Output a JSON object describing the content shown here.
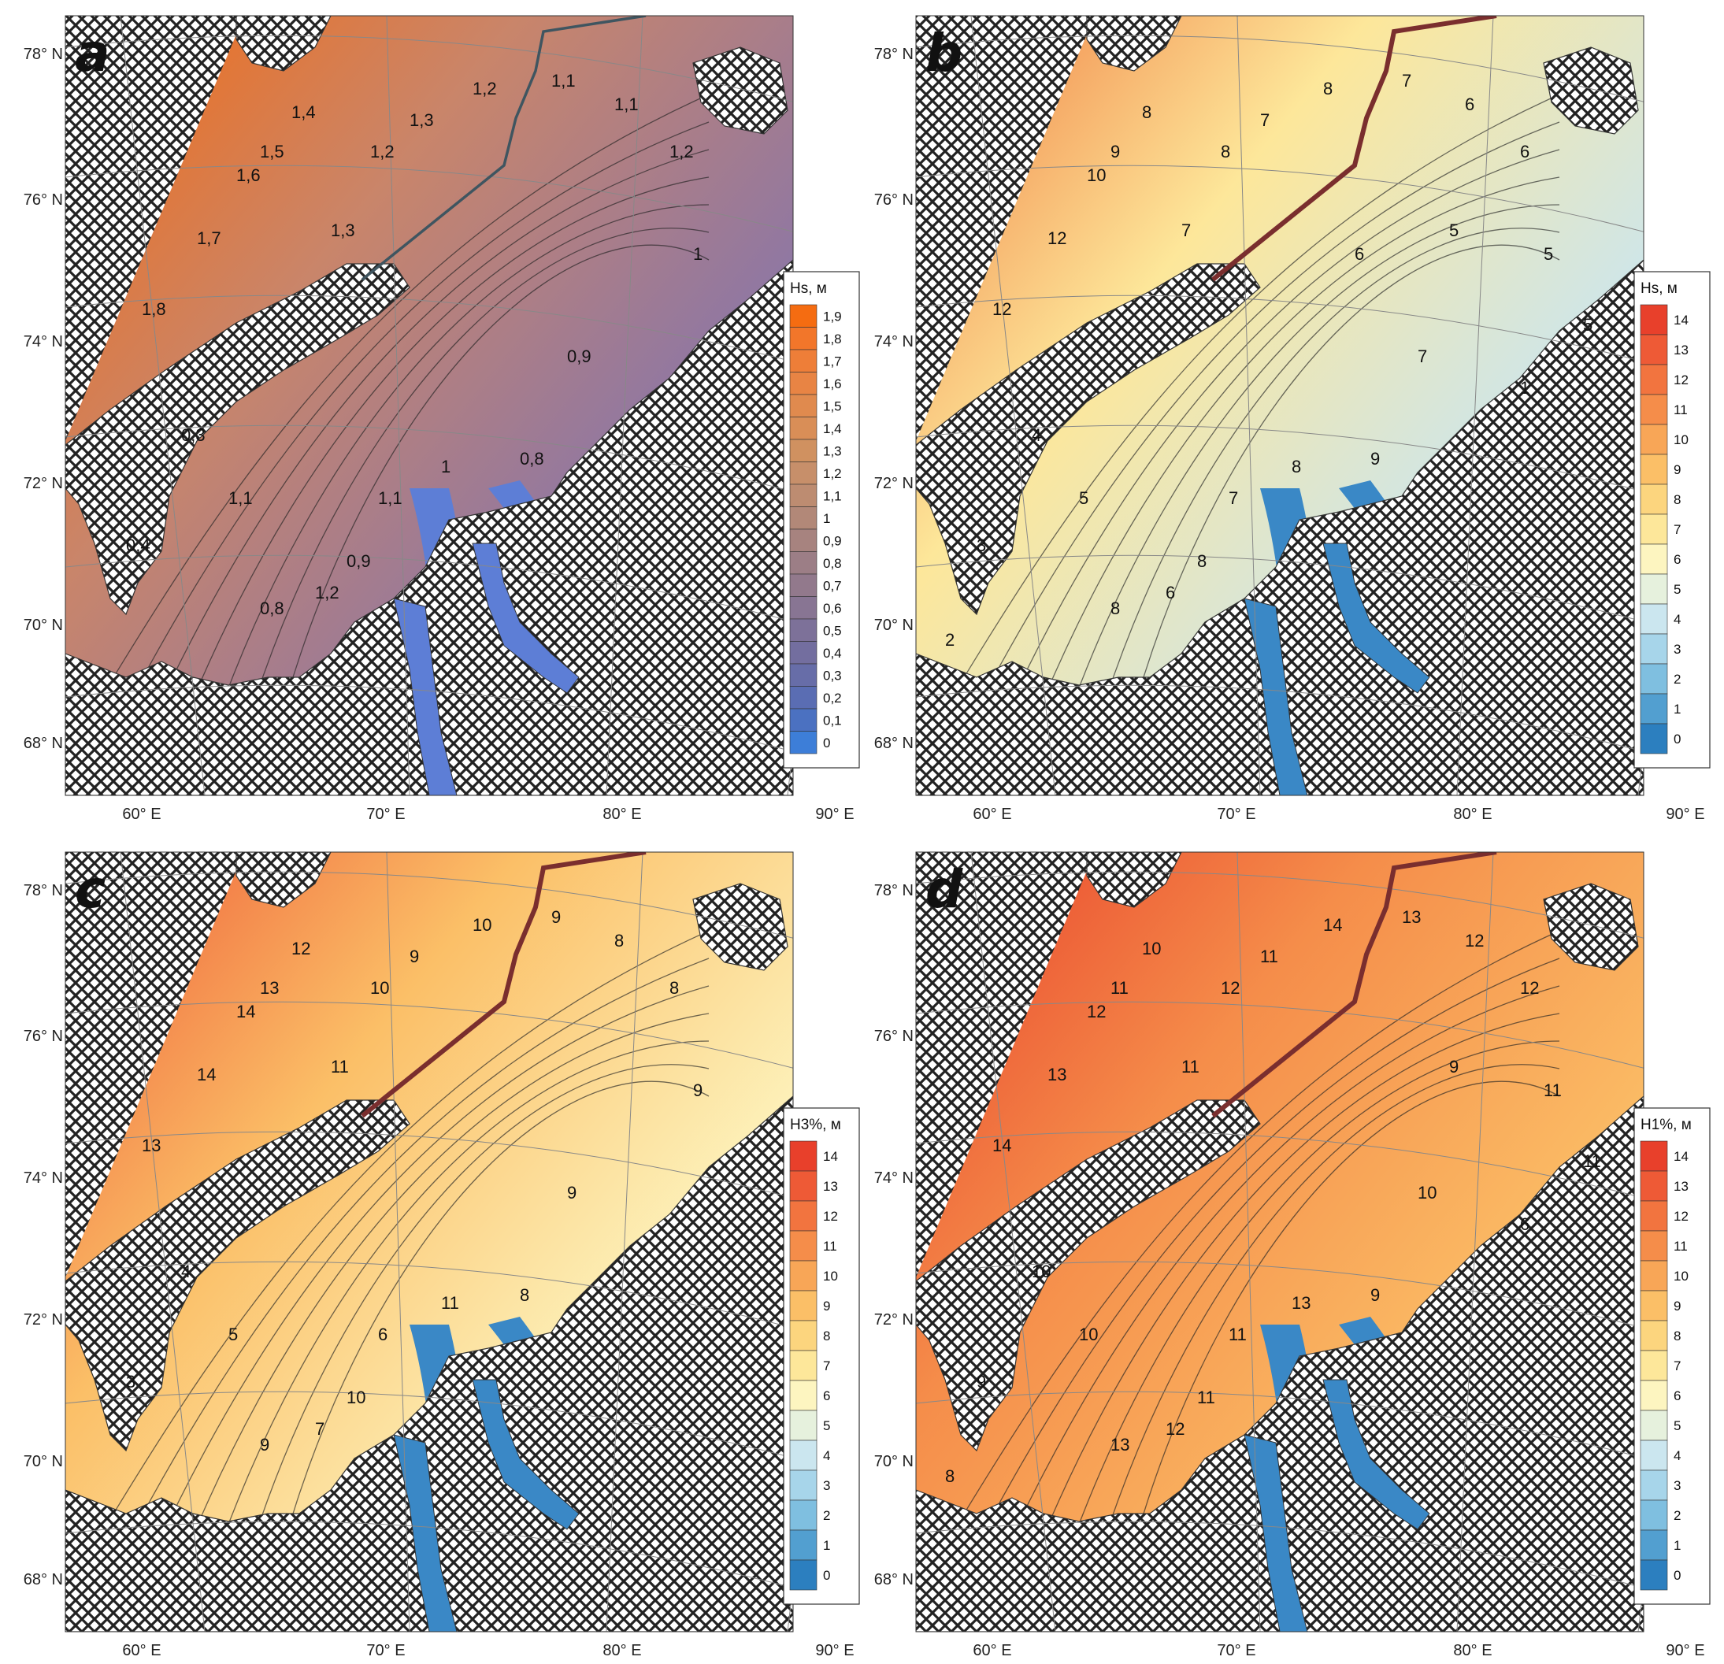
{
  "panels": [
    {
      "letter": "a",
      "colorbar_title": "Hs, м",
      "colorbar_ticks": [
        "1,9",
        "1,8",
        "1,7",
        "1,6",
        "1,5",
        "1,4",
        "1,3",
        "1,2",
        "1,1",
        "1",
        "0,9",
        "0,8",
        "0,7",
        "0,6",
        "0,5",
        "0,4",
        "0,3",
        "0,2",
        "0,1",
        "0"
      ],
      "colorbar_colors": [
        "#f56c11",
        "#f2762a",
        "#ee7e38",
        "#e88444",
        "#e08a4e",
        "#d98e57",
        "#d09160",
        "#c78f6a",
        "#bd8c71",
        "#b28878",
        "#a7837f",
        "#9c7e86",
        "#92798c",
        "#887593",
        "#7d7199",
        "#736e9f",
        "#676da8",
        "#5a6db3",
        "#4b71c1",
        "#3d7ed8"
      ],
      "contour_labels": [
        "1,8",
        "1,7",
        "1,6",
        "1,5",
        "1,4",
        "1,3",
        "1,2",
        "1,3",
        "1,2",
        "1,1",
        "1,1",
        "1,2",
        "1",
        "0,9",
        "0,8",
        "1",
        "0,9",
        "0,8",
        "1,2",
        "1,1",
        "1,1",
        "0,3",
        "0,4"
      ],
      "palette": {
        "high": "#f56c11",
        "mid": "#c9856a",
        "low": "#8a76a8",
        "shallow": "#5d7ed6"
      }
    },
    {
      "letter": "b",
      "colorbar_title": "Hs, м",
      "colorbar_ticks": [
        "14",
        "13",
        "12",
        "11",
        "10",
        "9",
        "8",
        "7",
        "6",
        "5",
        "4",
        "3",
        "2",
        "1",
        "0"
      ],
      "colorbar_colors": [
        "#e8402b",
        "#ee5a36",
        "#f2743f",
        "#f58d4a",
        "#f8a657",
        "#fbbf67",
        "#fcd57e",
        "#fde79a",
        "#fdf5c0",
        "#e6f1dd",
        "#cbe6ef",
        "#a7d5ea",
        "#7fbfe0",
        "#529fd0",
        "#2c7fbf"
      ],
      "contour_labels": [
        "12",
        "12",
        "10",
        "9",
        "8",
        "7",
        "8",
        "7",
        "8",
        "7",
        "6",
        "6",
        "5",
        "7",
        "9",
        "8",
        "8",
        "8",
        "6",
        "7",
        "5",
        "4",
        "3",
        "2",
        "1",
        "5",
        "5",
        "6"
      ],
      "palette": {
        "high": "#f07a3e",
        "mid": "#fde79a",
        "low": "#cbe6ef",
        "shallow": "#3a88c6"
      }
    },
    {
      "letter": "c",
      "colorbar_title": "H3%, м",
      "colorbar_ticks": [
        "14",
        "13",
        "12",
        "11",
        "10",
        "9",
        "8",
        "7",
        "6",
        "5",
        "4",
        "3",
        "2",
        "1",
        "0"
      ],
      "colorbar_colors": [
        "#e8402b",
        "#ee5a36",
        "#f2743f",
        "#f58d4a",
        "#f8a657",
        "#fbbf67",
        "#fcd57e",
        "#fde79a",
        "#fdf5c0",
        "#e6f1dd",
        "#cbe6ef",
        "#a7d5ea",
        "#7fbfe0",
        "#529fd0",
        "#2c7fbf"
      ],
      "contour_labels": [
        "13",
        "14",
        "14",
        "13",
        "12",
        "11",
        "10",
        "9",
        "10",
        "9",
        "8",
        "8",
        "9",
        "9",
        "8",
        "11",
        "10",
        "9",
        "7",
        "6",
        "5",
        "4",
        "3"
      ],
      "palette": {
        "high": "#ee5a36",
        "mid": "#fbbf67",
        "low": "#fdf5c0",
        "shallow": "#3a88c6"
      }
    },
    {
      "letter": "d",
      "colorbar_title": "H1%, м",
      "colorbar_ticks": [
        "14",
        "13",
        "12",
        "11",
        "10",
        "9",
        "8",
        "7",
        "6",
        "5",
        "4",
        "3",
        "2",
        "1",
        "0"
      ],
      "colorbar_colors": [
        "#e8402b",
        "#ee5a36",
        "#f2743f",
        "#f58d4a",
        "#f8a657",
        "#fbbf67",
        "#fcd57e",
        "#fde79a",
        "#fdf5c0",
        "#e6f1dd",
        "#cbe6ef",
        "#a7d5ea",
        "#7fbfe0",
        "#529fd0",
        "#2c7fbf"
      ],
      "contour_labels": [
        "14",
        "13",
        "12",
        "11",
        "10",
        "11",
        "12",
        "11",
        "14",
        "13",
        "12",
        "12",
        "11",
        "10",
        "9",
        "13",
        "11",
        "13",
        "12",
        "11",
        "10",
        "10",
        "9",
        "8",
        "6",
        "11",
        "9"
      ],
      "palette": {
        "high": "#e8402b",
        "mid": "#f58d4a",
        "low": "#fbbf67",
        "shallow": "#3a88c6"
      }
    }
  ],
  "latitude_labels": [
    "78° N",
    "76° N",
    "74° N",
    "72° N",
    "70° N",
    "68° N"
  ],
  "longitude_labels": [
    "60° E",
    "70° E",
    "80° E",
    "90° E"
  ],
  "colors": {
    "land_hatch": "#222222",
    "land_bg": "#ffffff",
    "route_line_a": "#3f5560",
    "route_line_bcd": "#7a2e2e"
  }
}
